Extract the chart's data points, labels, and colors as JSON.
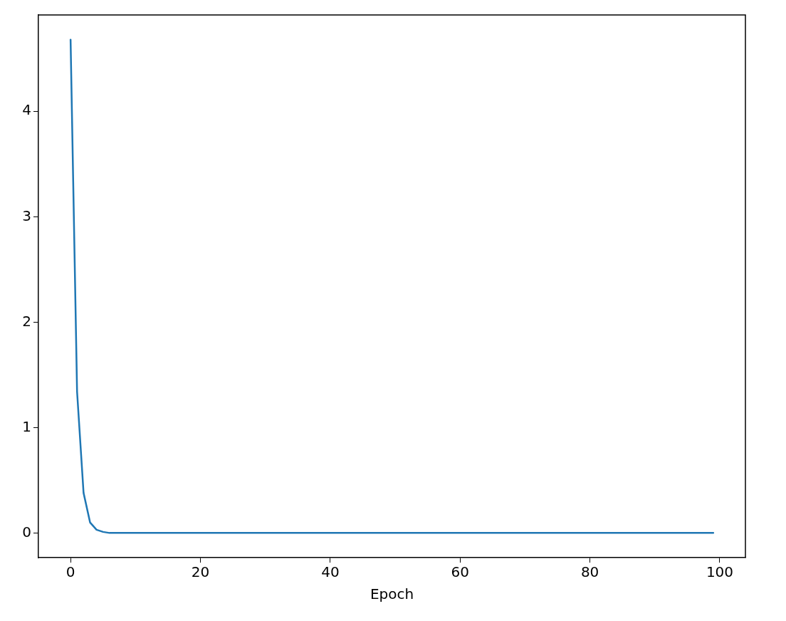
{
  "chart_data": {
    "type": "line",
    "xlabel": "Epoch",
    "x": [
      0,
      1,
      2,
      3,
      4,
      5,
      6,
      7,
      8,
      9,
      10,
      11,
      12,
      13,
      14,
      15,
      16,
      17,
      18,
      19,
      20,
      21,
      22,
      23,
      24,
      25,
      26,
      27,
      28,
      29,
      30,
      31,
      32,
      33,
      34,
      35,
      36,
      37,
      38,
      39,
      40,
      41,
      42,
      43,
      44,
      45,
      46,
      47,
      48,
      49,
      50,
      51,
      52,
      53,
      54,
      55,
      56,
      57,
      58,
      59,
      60,
      61,
      62,
      63,
      64,
      65,
      66,
      67,
      68,
      69,
      70,
      71,
      72,
      73,
      74,
      75,
      76,
      77,
      78,
      79,
      80,
      81,
      82,
      83,
      84,
      85,
      86,
      87,
      88,
      89,
      90,
      91,
      92,
      93,
      94,
      95,
      96,
      97,
      98,
      99
    ],
    "series": [
      {
        "color": "#1f77b4",
        "values": [
          4.68,
          1.34,
          0.38,
          0.1,
          0.03,
          0.01,
          0,
          0,
          0,
          0,
          0,
          0,
          0,
          0,
          0,
          0,
          0,
          0,
          0,
          0,
          0,
          0,
          0,
          0,
          0,
          0,
          0,
          0,
          0,
          0,
          0,
          0,
          0,
          0,
          0,
          0,
          0,
          0,
          0,
          0,
          0,
          0,
          0,
          0,
          0,
          0,
          0,
          0,
          0,
          0,
          0,
          0,
          0,
          0,
          0,
          0,
          0,
          0,
          0,
          0,
          0,
          0,
          0,
          0,
          0,
          0,
          0,
          0,
          0,
          0,
          0,
          0,
          0,
          0,
          0,
          0,
          0,
          0,
          0,
          0,
          0,
          0,
          0,
          0,
          0,
          0,
          0,
          0,
          0,
          0,
          0,
          0,
          0,
          0,
          0,
          0,
          0,
          0,
          0,
          0
        ]
      }
    ],
    "xlim": [
      -4.95,
      103.95
    ],
    "xticks": [
      0,
      20,
      40,
      60,
      80,
      100
    ],
    "ylim": [
      -0.234,
      4.914
    ],
    "yticks": [
      0,
      1,
      2,
      3,
      4
    ],
    "grid": false,
    "legend": false,
    "marker": "none",
    "line_style": "solid"
  }
}
